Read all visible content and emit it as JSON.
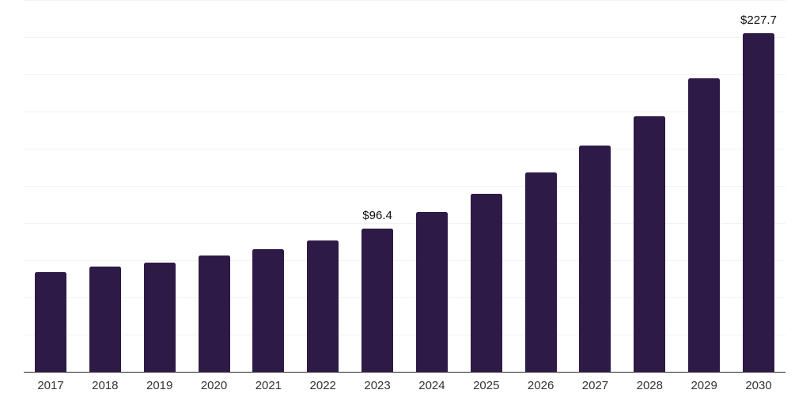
{
  "chart_data": {
    "type": "bar",
    "title": "",
    "xlabel": "",
    "ylabel": "",
    "categories": [
      "2017",
      "2018",
      "2019",
      "2020",
      "2021",
      "2022",
      "2023",
      "2024",
      "2025",
      "2026",
      "2027",
      "2028",
      "2029",
      "2030"
    ],
    "values": [
      66.8,
      70.7,
      73.6,
      78.0,
      82.6,
      88.2,
      96.4,
      107.2,
      119.7,
      134.3,
      152.0,
      171.9,
      197.3,
      227.7
    ],
    "data_labels": [
      "",
      "",
      "",
      "",
      "",
      "",
      "$96.4",
      "",
      "",
      "",
      "",
      "",
      "",
      "$227.7"
    ],
    "ylim": [
      0,
      250
    ],
    "grid_step": 25,
    "grid": true,
    "y_tick_labels_shown": false,
    "legend_position": "none",
    "bar_color": "#2e1a47",
    "gridline_color": "#f2f2f2",
    "axis_line_color": "#262626",
    "tick_label_color": "#333333",
    "data_label_color": "#0d0d0d",
    "background_color": "#ffffff"
  }
}
